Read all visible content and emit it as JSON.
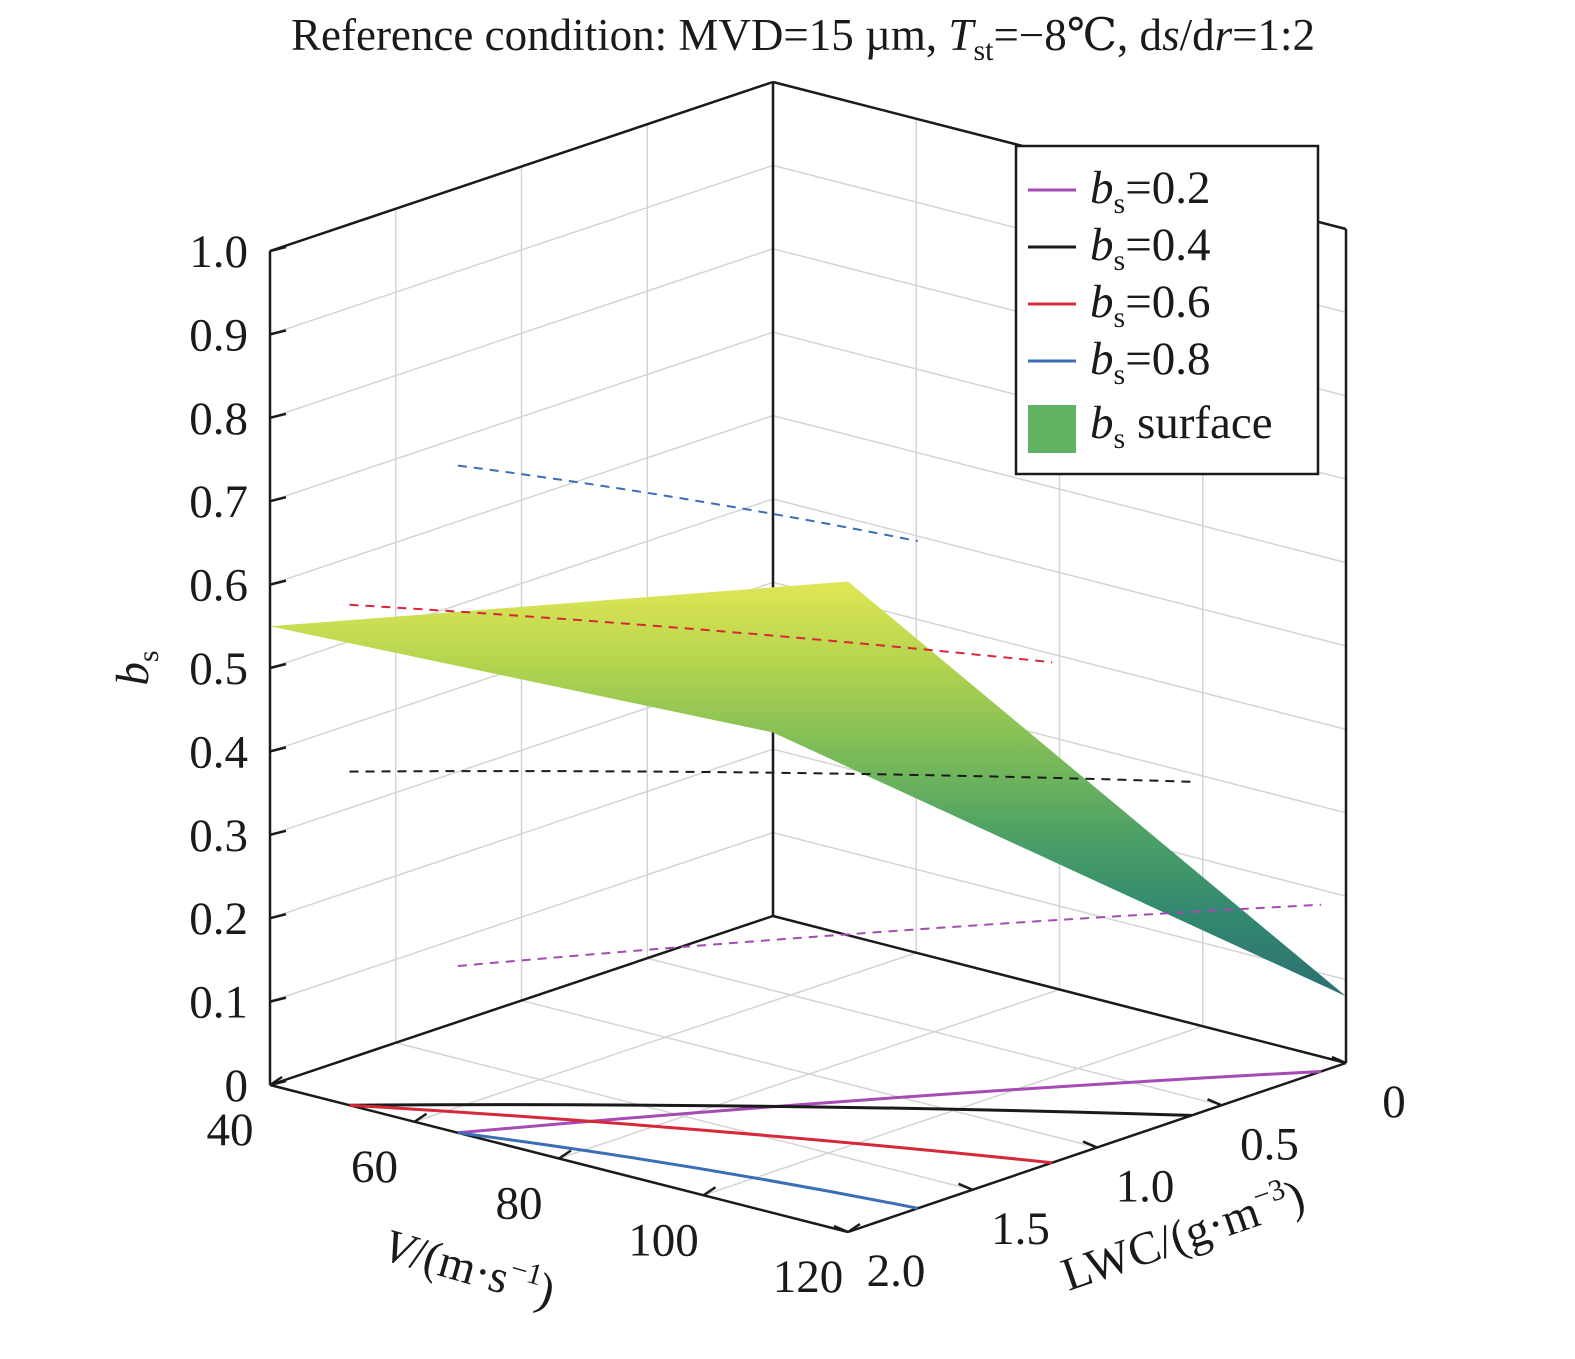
{
  "chart_data": {
    "type": "surface3d",
    "title": {
      "prefix": "Reference condition: MVD=15 µm, ",
      "t_main": "T",
      "t_sub": "st",
      "t_rest": "=−8℃, d",
      "s": "s",
      "slash": "/d",
      "r": "r",
      "ratio": "=1:2"
    },
    "x_axis": {
      "name": "V",
      "label_rest": "/(m·s",
      "label_exp": "−1",
      "label_close": ")",
      "range": [
        40,
        120
      ],
      "ticks": [
        40,
        60,
        80,
        100,
        120
      ],
      "tick_labels": [
        "40",
        "60",
        "80",
        "100",
        "120"
      ]
    },
    "y_axis": {
      "label": "LWC/(g·m",
      "label_exp": "−3",
      "label_close": ")",
      "range": [
        0,
        2.0
      ],
      "ticks": [
        0,
        0.5,
        1.0,
        1.5,
        2.0
      ],
      "tick_labels": [
        "0",
        "0.5",
        "1.0",
        "1.5",
        "2.0"
      ]
    },
    "z_axis": {
      "label_main": "b",
      "label_sub": "s",
      "range": [
        0,
        1.0
      ],
      "ticks": [
        0,
        0.1,
        0.2,
        0.3,
        0.4,
        0.5,
        0.6,
        0.7,
        0.8,
        0.9,
        1.0
      ],
      "tick_labels": [
        "0",
        "0.1",
        "0.2",
        "0.3",
        "0.4",
        "0.5",
        "0.6",
        "0.7",
        "0.8",
        "0.9",
        "1.0"
      ]
    },
    "surface": {
      "name": "bs surface",
      "colormap": [
        "#2d6f72",
        "#32896f",
        "#4fa265",
        "#7fbd58",
        "#b3d44e",
        "#e0e755"
      ],
      "corners": [
        {
          "V": 40,
          "LWC": 2.0,
          "bs": 0.55
        },
        {
          "V": 120,
          "LWC": 2.0,
          "bs": 0.78
        },
        {
          "V": 40,
          "LWC": 0,
          "bs": 0.22
        },
        {
          "V": 120,
          "LWC": 0,
          "bs": 0.08
        }
      ]
    },
    "legend": {
      "position": "top-right",
      "entries": [
        {
          "main": "b",
          "sub": "s",
          "text": "=0.2",
          "color": "#a64ab5",
          "kind": "line"
        },
        {
          "main": "b",
          "sub": "s",
          "text": "=0.4",
          "color": "#1a1a1a",
          "kind": "line"
        },
        {
          "main": "b",
          "sub": "s",
          "text": "=0.6",
          "color": "#d62839",
          "kind": "line"
        },
        {
          "main": "b",
          "sub": "s",
          "text": "=0.8",
          "color": "#3a6eb5",
          "kind": "line"
        },
        {
          "main": "b",
          "sub": "s",
          "text": " surface",
          "color": "#62b263",
          "kind": "patch"
        }
      ]
    },
    "contour_levels": [
      {
        "level": 0.2,
        "color": "#a64ab5",
        "points": [
          [
            66,
            2.0
          ],
          [
            120,
            0.1
          ]
        ]
      },
      {
        "level": 0.4,
        "color": "#1a1a1a",
        "points": [
          [
            51,
            2.0
          ],
          [
            120,
            0.62
          ]
        ]
      },
      {
        "level": 0.6,
        "color": "#d62839",
        "points": [
          [
            51,
            2.0
          ],
          [
            120,
            1.18
          ]
        ]
      },
      {
        "level": 0.8,
        "color": "#3a6eb5",
        "points": [
          [
            66,
            2.0
          ],
          [
            120,
            1.72
          ]
        ]
      }
    ]
  }
}
